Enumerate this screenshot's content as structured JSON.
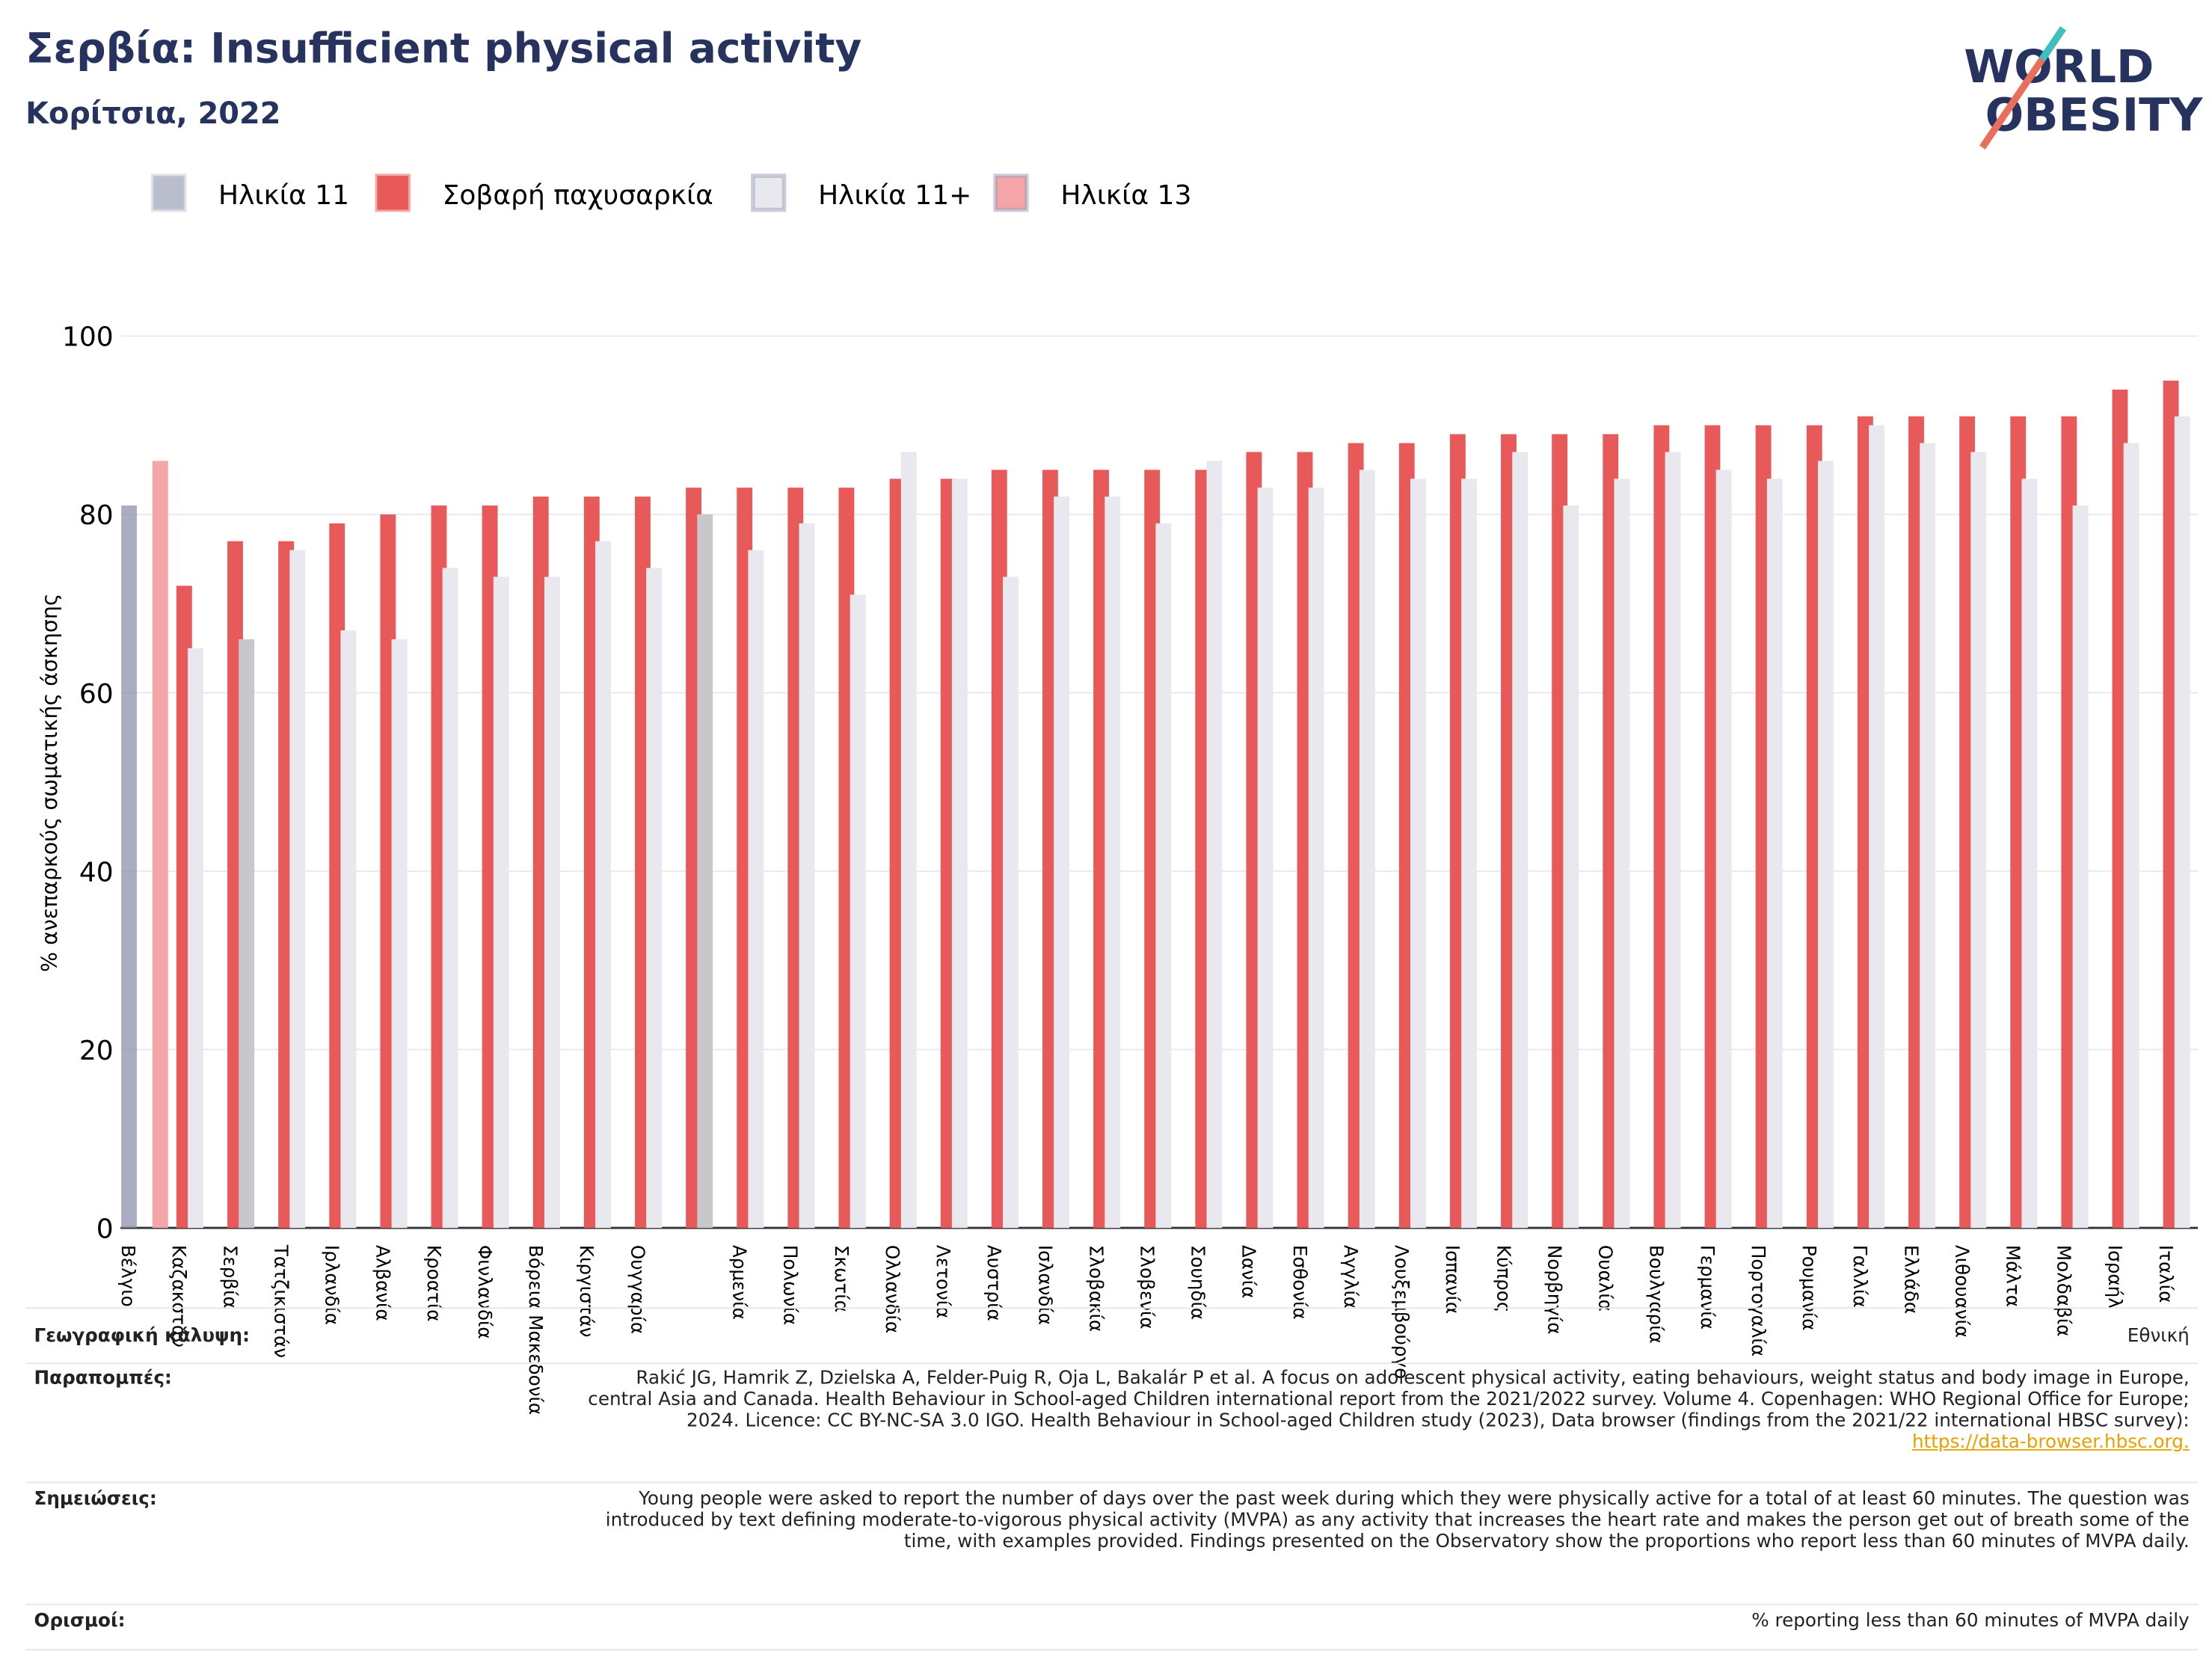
{
  "title": "Σερβία: Insufficient physical activity",
  "subtitle": "Κορίτσια, 2022",
  "logo": {
    "line1": "WORLD",
    "line2": "OBESITY"
  },
  "chart_data": {
    "type": "bar",
    "y_label": "% ανεπαρκούς σωματικής άσκησης",
    "categories": [
      "Βέλγιο",
      "Καζακστάν",
      "Σερβία",
      "Τατζικιστάν",
      "Ιρλανδία",
      "Αλβανία",
      "Κροατία",
      "Φινλανδία",
      "Βόρεια Μακεδονία",
      "Κιργιστάν",
      "Ουγγαρία",
      null,
      "Αρμενία",
      "Πολωνία",
      "Σκωτία",
      "Ολλανδία",
      "Λετονία",
      "Αυστρία",
      "Ισλανδία",
      "Σλοβακία",
      "Σλοβενία",
      "Σουηδία",
      "Δανία",
      "Εσθονία",
      "Αγγλία",
      "Λουξεμβούργο",
      "Ισπανία",
      "Κύπρος",
      "Νορβηγία",
      "Ουαλία",
      "Βουλγαρία",
      "Γερμανία",
      "Πορτογαλία",
      "Ρουμανία",
      "Γαλλία",
      "Ελλάδα",
      "Λιθουανία",
      "Μάλτα",
      "Μολδαβία",
      "Ισραήλ",
      "Ιταλία"
    ],
    "series": [
      {
        "name": "Ηλικία 11",
        "color": "#8d92ab",
        "values": [
          81,
          null,
          null,
          null,
          null,
          null,
          null,
          null,
          null,
          null,
          null,
          null,
          null,
          null,
          null,
          null,
          null,
          null,
          null,
          null,
          null,
          null,
          null,
          null,
          null,
          null,
          null,
          null,
          null,
          null,
          null,
          null,
          null,
          null,
          null,
          null,
          null,
          null,
          null,
          null,
          null
        ]
      },
      {
        "name": "Σοβαρή παχυσαρκία",
        "color": "#e85a5a",
        "values": [
          null,
          72,
          77,
          77,
          79,
          80,
          81,
          81,
          82,
          82,
          82,
          83,
          83,
          83,
          83,
          84,
          84,
          85,
          85,
          85,
          85,
          85,
          87,
          87,
          88,
          88,
          89,
          89,
          89,
          89,
          90,
          90,
          90,
          90,
          91,
          91,
          91,
          91,
          91,
          94,
          95
        ]
      },
      {
        "name": "Ηλικία 11+",
        "color": "#e8e8ee",
        "point_colors": {
          "2": "#c8c8cc",
          "11": "#c8c8cc"
        },
        "values": [
          null,
          65,
          66,
          76,
          67,
          66,
          74,
          73,
          73,
          77,
          74,
          80,
          76,
          79,
          71,
          87,
          84,
          73,
          82,
          82,
          79,
          86,
          83,
          83,
          85,
          84,
          84,
          87,
          81,
          84,
          87,
          85,
          84,
          86,
          90,
          88,
          87,
          84,
          81,
          88,
          91
        ]
      },
      {
        "name": "Ηλικία 13",
        "color": "#f5a5a8",
        "values": [
          86,
          null,
          null,
          null,
          null,
          null,
          null,
          null,
          null,
          null,
          null,
          null,
          null,
          null,
          null,
          null,
          null,
          null,
          null,
          null,
          null,
          null,
          null,
          null,
          null,
          null,
          null,
          null,
          null,
          null,
          null,
          null,
          null,
          null,
          null,
          null,
          null,
          null,
          null,
          null,
          null
        ]
      }
    ],
    "ylim": [
      0,
      100
    ],
    "yticks": [
      0,
      20,
      40,
      60,
      80,
      100
    ],
    "grid": true
  },
  "notes": [
    {
      "label": "Γεωγραφική κάλυψη:",
      "text": "Εθνική"
    },
    {
      "label": "Παραπομπές:",
      "text": "Rakić JG, Hamrik Z, Dzielska A, Felder-Puig R, Oja L, Bakalár P et al. A focus on adolescent physical activity, eating behaviours, weight status and body image in Europe, central Asia and Canada. Health Behaviour in School-aged Children international report from the 2021/2022 survey. Volume 4. Copenhagen: WHO Regional Office for Europe; 2024. Licence: CC BY-NC-SA 3.0 IGO. Health Behaviour in School-aged Children study (2023), Data browser (findings from the 2021/22 international HBSC survey):",
      "link": "https://data-browser.hbsc.org."
    },
    {
      "label": "Σημειώσεις:",
      "text": "Young people were asked to report the number of days over the past week during which they were physically active for a total of at least 60 minutes. The question was introduced by text defining moderate-to-vigorous physical activity (MVPA) as any activity that increases the heart rate and makes the person get out of breath some of the time, with examples provided. Findings presented on the Observatory show the proportions who report less than 60 minutes of MVPA daily."
    },
    {
      "label": "Ορισμοί:",
      "text": "% reporting less than 60 minutes of MVPA daily"
    }
  ]
}
